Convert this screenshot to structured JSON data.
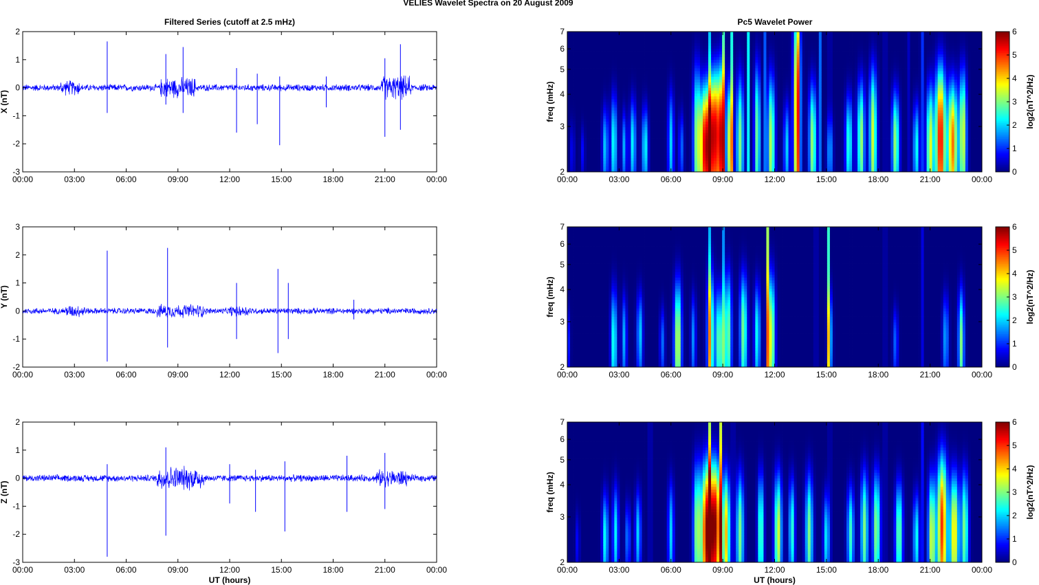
{
  "figure": {
    "title": "VELIES Wavelet Spectra on 20 August    2009",
    "left_title": "Filtered Series (cutoff at 2.5 mHz)",
    "right_title": "Pc5 Wavelet Power"
  },
  "time_ticks": [
    "00:00",
    "03:00",
    "06:00",
    "09:00",
    "12:00",
    "15:00",
    "18:00",
    "21:00",
    "00:00"
  ],
  "chart_data": [
    {
      "type": "line",
      "name": "X series",
      "title": "Filtered Series (cutoff at 2.5 mHz)",
      "xlabel": "",
      "ylabel": "X (nT)",
      "xlim_hours": [
        0,
        24
      ],
      "ylim": [
        -3,
        2
      ],
      "yticks": [
        -3,
        -2,
        -1,
        0,
        1,
        2
      ],
      "noise_amplitude": 0.1,
      "activity": [
        [
          2.2,
          3.3,
          2.2
        ],
        [
          8.0,
          10.0,
          3.0
        ],
        [
          20.8,
          22.5,
          3.5
        ]
      ],
      "spikes": [
        [
          4.9,
          1.65,
          -0.9
        ],
        [
          8.3,
          1.2,
          -0.6
        ],
        [
          9.3,
          1.45,
          -0.9
        ],
        [
          12.4,
          0.7,
          -1.6
        ],
        [
          13.6,
          0.5,
          -1.3
        ],
        [
          14.9,
          0.4,
          -2.05
        ],
        [
          17.6,
          0.4,
          -0.7
        ],
        [
          21.0,
          1.05,
          -1.75
        ],
        [
          21.9,
          1.55,
          -1.5
        ]
      ],
      "color": "#0000ff"
    },
    {
      "type": "line",
      "name": "Y series",
      "xlabel": "",
      "ylabel": "Y (nT)",
      "xlim_hours": [
        0,
        24
      ],
      "ylim": [
        -2,
        3
      ],
      "yticks": [
        -2,
        -1,
        0,
        1,
        2,
        3
      ],
      "noise_amplitude": 0.09,
      "activity": [
        [
          2.5,
          3.6,
          2.0
        ],
        [
          7.8,
          10.5,
          2.2
        ],
        [
          12.0,
          13.2,
          1.8
        ]
      ],
      "spikes": [
        [
          4.9,
          2.15,
          -1.8
        ],
        [
          8.4,
          2.25,
          -1.3
        ],
        [
          12.4,
          1.0,
          -1.0
        ],
        [
          14.8,
          1.5,
          -1.5
        ],
        [
          15.4,
          1.0,
          -1.0
        ],
        [
          19.2,
          0.4,
          -0.3
        ]
      ],
      "color": "#0000ff"
    },
    {
      "type": "line",
      "name": "Z series",
      "xlabel": "UT (hours)",
      "ylabel": "Z (nT)",
      "xlim_hours": [
        0,
        24
      ],
      "ylim": [
        -3,
        2
      ],
      "yticks": [
        -3,
        -2,
        -1,
        0,
        1,
        2
      ],
      "noise_amplitude": 0.1,
      "activity": [
        [
          7.8,
          10.5,
          3.5
        ],
        [
          20.5,
          22.3,
          2.5
        ]
      ],
      "spikes": [
        [
          4.9,
          0.5,
          -2.8
        ],
        [
          8.3,
          1.1,
          -2.05
        ],
        [
          12.0,
          0.5,
          -0.9
        ],
        [
          13.5,
          0.3,
          -1.2
        ],
        [
          15.2,
          0.6,
          -1.9
        ],
        [
          18.8,
          0.8,
          -1.2
        ],
        [
          21.0,
          0.9,
          -1.1
        ]
      ],
      "color": "#0000ff"
    },
    {
      "type": "heatmap",
      "name": "X wavelet power",
      "title": "Pc5 Wavelet Power",
      "xlabel": "",
      "ylabel": "freq (mHz)",
      "xlim_hours": [
        0,
        24
      ],
      "ylim_mhz": [
        2,
        7
      ],
      "yscale": "log",
      "yticks": [
        2,
        3,
        4,
        5,
        6,
        7
      ],
      "colorbar_label": "log2(nT^2/Hz)",
      "colorbar_ticks": [
        0,
        1,
        2,
        3,
        4,
        5,
        6
      ],
      "blobs": [
        [
          0.3,
          2.4,
          0.08,
          0.5,
          0.8
        ],
        [
          0.9,
          2.4,
          0.08,
          0.4,
          0.8
        ],
        [
          2.2,
          2.5,
          0.12,
          0.7,
          2.0
        ],
        [
          2.7,
          2.6,
          0.12,
          0.9,
          2.5
        ],
        [
          3.3,
          2.5,
          0.1,
          0.6,
          1.8
        ],
        [
          3.8,
          2.6,
          0.12,
          0.8,
          2.3
        ],
        [
          4.5,
          2.5,
          0.12,
          0.7,
          2.4
        ],
        [
          6.0,
          2.6,
          0.12,
          1.0,
          2.0
        ],
        [
          6.6,
          2.5,
          0.1,
          0.6,
          1.4
        ],
        [
          7.5,
          2.7,
          0.15,
          1.6,
          3.0
        ],
        [
          8.0,
          2.5,
          0.22,
          1.2,
          5.6
        ],
        [
          8.5,
          2.8,
          0.2,
          1.4,
          5.2
        ],
        [
          8.9,
          2.7,
          0.15,
          1.6,
          4.8
        ],
        [
          9.4,
          2.6,
          0.12,
          1.2,
          3.6
        ],
        [
          10.0,
          2.6,
          0.15,
          1.4,
          3.0
        ],
        [
          11.0,
          2.8,
          0.12,
          1.6,
          3.0
        ],
        [
          11.8,
          2.6,
          0.15,
          1.4,
          3.4
        ],
        [
          12.7,
          2.5,
          0.12,
          0.8,
          2.0
        ],
        [
          13.3,
          3.5,
          0.14,
          3.5,
          4.6
        ],
        [
          14.2,
          2.6,
          0.15,
          1.2,
          3.2
        ],
        [
          15.2,
          2.4,
          0.12,
          0.6,
          1.6
        ],
        [
          16.3,
          2.6,
          0.14,
          0.9,
          2.6
        ],
        [
          17.0,
          2.7,
          0.15,
          1.2,
          3.2
        ],
        [
          17.7,
          2.8,
          0.15,
          1.5,
          3.5
        ],
        [
          19.0,
          2.6,
          0.15,
          1.0,
          3.2
        ],
        [
          20.2,
          2.5,
          0.12,
          0.8,
          2.4
        ],
        [
          21.0,
          2.5,
          0.15,
          1.2,
          3.6
        ],
        [
          21.6,
          2.7,
          0.2,
          1.6,
          5.4
        ],
        [
          22.3,
          2.6,
          0.2,
          1.2,
          4.6
        ],
        [
          22.9,
          2.8,
          0.15,
          1.4,
          3.6
        ]
      ],
      "lines": [
        [
          8.2,
          3.6
        ],
        [
          9.0,
          4.8
        ],
        [
          9.5,
          2.8
        ],
        [
          10.5,
          2.6
        ],
        [
          11.4,
          2.4
        ],
        [
          13.3,
          4.4
        ],
        [
          14.6,
          2.6
        ],
        [
          15.2,
          2.4
        ],
        [
          18.4,
          2.6
        ],
        [
          19.7,
          1.6
        ],
        [
          20.5,
          4.4
        ]
      ]
    },
    {
      "type": "heatmap",
      "name": "Y wavelet power",
      "xlabel": "",
      "ylabel": "freq (mHz)",
      "xlim_hours": [
        0,
        24
      ],
      "ylim_mhz": [
        2,
        7
      ],
      "yscale": "log",
      "yticks": [
        2,
        3,
        4,
        5,
        6,
        7
      ],
      "colorbar_label": "log2(nT^2/Hz)",
      "colorbar_ticks": [
        0,
        1,
        2,
        3,
        4,
        5,
        6
      ],
      "blobs": [
        [
          0.0,
          2.5,
          0.1,
          0.6,
          1.2
        ],
        [
          2.7,
          2.5,
          0.12,
          1.0,
          2.6
        ],
        [
          3.3,
          2.6,
          0.1,
          0.8,
          1.8
        ],
        [
          4.2,
          2.7,
          0.12,
          0.8,
          2.0
        ],
        [
          5.5,
          2.5,
          0.1,
          0.6,
          1.4
        ],
        [
          6.4,
          2.5,
          0.15,
          1.2,
          3.6
        ],
        [
          7.3,
          2.6,
          0.1,
          0.8,
          1.6
        ],
        [
          8.3,
          2.7,
          0.15,
          1.4,
          3.0
        ],
        [
          8.8,
          2.5,
          0.15,
          1.0,
          3.0
        ],
        [
          9.3,
          2.7,
          0.15,
          1.3,
          3.0
        ],
        [
          10.2,
          2.8,
          0.15,
          1.2,
          3.0
        ],
        [
          11.0,
          2.7,
          0.12,
          1.0,
          2.4
        ],
        [
          11.8,
          2.6,
          0.15,
          1.3,
          3.8
        ],
        [
          15.2,
          2.6,
          0.1,
          0.9,
          2.2
        ],
        [
          19.0,
          2.5,
          0.1,
          0.6,
          1.4
        ],
        [
          21.9,
          2.6,
          0.12,
          0.8,
          1.8
        ],
        [
          22.8,
          2.5,
          0.12,
          1.0,
          3.0
        ]
      ],
      "lines": [
        [
          8.2,
          3.4
        ],
        [
          9.0,
          3.0
        ],
        [
          11.6,
          3.2
        ],
        [
          14.4,
          2.8
        ],
        [
          15.1,
          3.0
        ],
        [
          18.4,
          2.4
        ],
        [
          20.5,
          2.4
        ]
      ]
    },
    {
      "type": "heatmap",
      "name": "Z wavelet power",
      "xlabel": "UT (hours)",
      "ylabel": "freq (mHz)",
      "xlim_hours": [
        0,
        24
      ],
      "ylim_mhz": [
        2,
        7
      ],
      "yscale": "log",
      "yticks": [
        2,
        3,
        4,
        5,
        6,
        7
      ],
      "colorbar_label": "log2(nT^2/Hz)",
      "colorbar_ticks": [
        0,
        1,
        2,
        3,
        4,
        5,
        6
      ],
      "blobs": [
        [
          0.6,
          2.4,
          0.08,
          0.5,
          0.8
        ],
        [
          2.2,
          2.5,
          0.12,
          0.8,
          2.4
        ],
        [
          2.8,
          2.6,
          0.12,
          0.9,
          2.2
        ],
        [
          3.5,
          2.5,
          0.1,
          0.6,
          1.6
        ],
        [
          4.1,
          2.6,
          0.12,
          0.8,
          2.0
        ],
        [
          6.0,
          2.6,
          0.12,
          1.0,
          2.0
        ],
        [
          7.5,
          2.7,
          0.15,
          1.4,
          3.0
        ],
        [
          8.1,
          2.6,
          0.25,
          1.5,
          5.8
        ],
        [
          8.6,
          2.8,
          0.22,
          1.4,
          5.0
        ],
        [
          9.2,
          2.6,
          0.15,
          1.2,
          4.0
        ],
        [
          10.0,
          2.6,
          0.15,
          1.2,
          3.0
        ],
        [
          11.2,
          2.6,
          0.12,
          1.2,
          3.0
        ],
        [
          12.2,
          2.6,
          0.15,
          1.2,
          3.6
        ],
        [
          13.0,
          2.7,
          0.12,
          1.0,
          2.6
        ],
        [
          14.0,
          2.6,
          0.15,
          1.2,
          3.0
        ],
        [
          15.0,
          2.5,
          0.12,
          0.8,
          2.2
        ],
        [
          16.4,
          2.6,
          0.14,
          0.9,
          2.6
        ],
        [
          17.2,
          2.7,
          0.15,
          1.2,
          3.0
        ],
        [
          17.9,
          2.7,
          0.15,
          1.2,
          3.2
        ],
        [
          19.2,
          2.6,
          0.15,
          1.0,
          3.0
        ],
        [
          20.2,
          2.5,
          0.12,
          0.8,
          2.4
        ],
        [
          21.1,
          2.5,
          0.15,
          1.2,
          3.6
        ],
        [
          21.7,
          2.8,
          0.2,
          1.6,
          5.0
        ],
        [
          22.4,
          2.6,
          0.18,
          1.2,
          4.0
        ],
        [
          23.0,
          2.7,
          0.15,
          1.2,
          3.0
        ]
      ],
      "lines": [
        [
          4.8,
          3.0
        ],
        [
          8.2,
          6.0
        ],
        [
          8.9,
          4.0
        ],
        [
          9.6,
          2.6
        ],
        [
          15.2,
          2.4
        ],
        [
          18.4,
          2.6
        ],
        [
          20.5,
          3.4
        ]
      ]
    }
  ]
}
